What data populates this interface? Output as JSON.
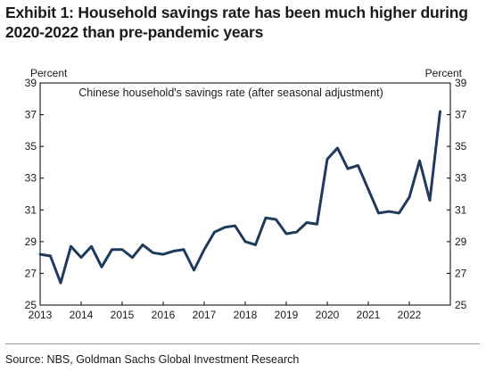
{
  "header": {
    "title": "Exhibit 1: Household savings rate has been much higher during 2020-2022 than pre-pandemic years"
  },
  "footer": {
    "source": "Source: NBS, Goldman Sachs Global Investment Research"
  },
  "chart_data": {
    "type": "line",
    "title": "Chinese household's savings rate (after seasonal adjustment)",
    "xlabel": "",
    "ylabel": "Percent",
    "ylabel_right": "Percent",
    "ylim": [
      25,
      39
    ],
    "yticks": [
      25,
      27,
      29,
      31,
      33,
      35,
      37,
      39
    ],
    "xlim": [
      2013,
      2023
    ],
    "xticks": [
      2013,
      2014,
      2015,
      2016,
      2017,
      2018,
      2019,
      2020,
      2021,
      2022
    ],
    "grid": false,
    "legend": "none",
    "line_color": "#1f3b5c",
    "series": [
      {
        "name": "",
        "x": [
          2013.0,
          2013.25,
          2013.5,
          2013.75,
          2014.0,
          2014.25,
          2014.5,
          2014.75,
          2015.0,
          2015.25,
          2015.5,
          2015.75,
          2016.0,
          2016.25,
          2016.5,
          2016.75,
          2017.0,
          2017.25,
          2017.5,
          2017.75,
          2018.0,
          2018.25,
          2018.5,
          2018.75,
          2019.0,
          2019.25,
          2019.5,
          2019.75,
          2020.0,
          2020.25,
          2020.5,
          2020.75,
          2021.0,
          2021.25,
          2021.5,
          2021.75,
          2022.0,
          2022.25,
          2022.5,
          2022.75
        ],
        "values": [
          28.2,
          28.1,
          26.4,
          28.7,
          28.0,
          28.7,
          27.4,
          28.5,
          28.5,
          28.0,
          28.8,
          28.3,
          28.2,
          28.4,
          28.5,
          27.2,
          28.5,
          29.6,
          29.9,
          30.0,
          29.0,
          28.8,
          30.5,
          30.4,
          29.5,
          29.6,
          30.2,
          30.1,
          34.2,
          34.9,
          33.6,
          33.8,
          32.3,
          30.8,
          30.9,
          30.8,
          31.8,
          34.1,
          31.6,
          37.2
        ]
      }
    ]
  }
}
